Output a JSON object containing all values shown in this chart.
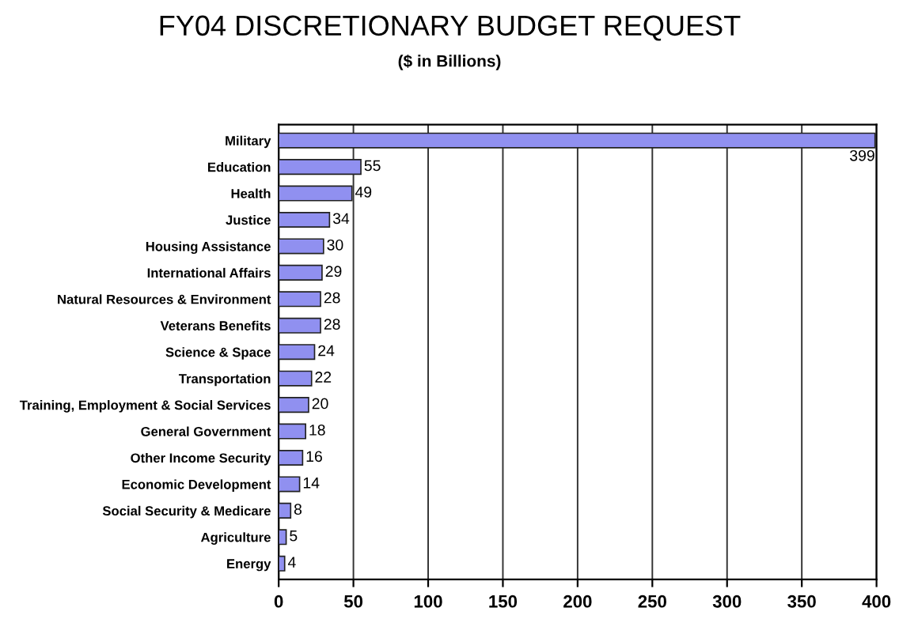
{
  "chart_data": {
    "type": "bar",
    "orientation": "horizontal",
    "title": "FY04 DISCRETIONARY BUDGET REQUEST",
    "subtitle": "($ in Billions)",
    "categories": [
      "Military",
      "Education",
      "Health",
      "Justice",
      "Housing Assistance",
      "International Affairs",
      "Natural Resources & Environment",
      "Veterans Benefits",
      "Science & Space",
      "Transportation",
      "Training, Employment & Social Services",
      "General Government",
      "Other Income Security",
      "Economic Development",
      "Social Security & Medicare",
      "Agriculture",
      "Energy"
    ],
    "values": [
      399,
      55,
      49,
      34,
      30,
      29,
      28,
      28,
      24,
      22,
      20,
      18,
      16,
      14,
      8,
      5,
      4
    ],
    "color": "#9090f0",
    "xlim": [
      0,
      400
    ],
    "xticks": [
      0,
      50,
      100,
      150,
      200,
      250,
      300,
      350,
      400
    ],
    "grid": "x",
    "data_labels": true
  }
}
